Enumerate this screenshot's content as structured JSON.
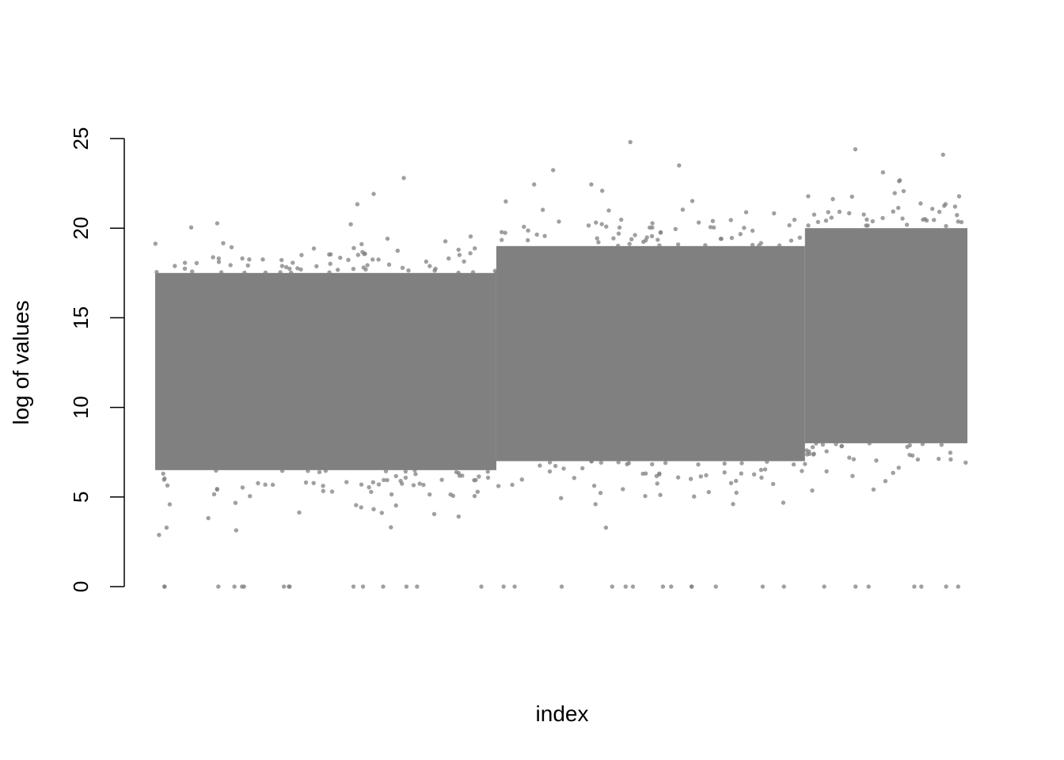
{
  "chart_data": {
    "type": "scatter",
    "title": "",
    "xlabel": "index",
    "ylabel": "log of values",
    "ylim": [
      0,
      25
    ],
    "yticks": [
      0,
      5,
      10,
      15,
      20,
      25
    ],
    "x_axis_drawn": false,
    "grid": false,
    "legend": "none",
    "point_color": "#808080",
    "segments": [
      {
        "x_range": [
          0,
          0.42
        ],
        "dense_band": [
          6.5,
          17.5
        ],
        "observed_max": 22.8,
        "observed_min": 0
      },
      {
        "x_range": [
          0.42,
          0.8
        ],
        "dense_band": [
          7,
          19
        ],
        "observed_max": 24.8,
        "observed_min": 0
      },
      {
        "x_range": [
          0.8,
          1.0
        ],
        "dense_band": [
          8,
          20
        ],
        "observed_max": 24.4,
        "observed_min": 0
      }
    ],
    "notable_points": [
      {
        "x": 0.585,
        "y": 24.8
      },
      {
        "x": 0.862,
        "y": 24.4
      },
      {
        "x": 0.97,
        "y": 24.1
      },
      {
        "x": 0.306,
        "y": 22.8
      },
      {
        "x": 0.645,
        "y": 23.5
      }
    ]
  }
}
